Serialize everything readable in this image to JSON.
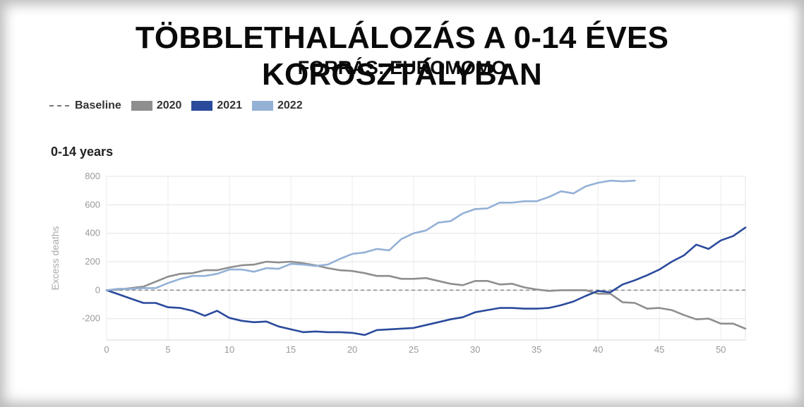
{
  "header": {
    "title": "TÖBBLETHALÁLOZÁS A 0-14 ÉVES KOROSZTÁLYBAN",
    "subtitle": "FORRÁS: EUROMOMO"
  },
  "chart_data": {
    "type": "line",
    "title": "0-14 years",
    "xlabel": "",
    "ylabel": "Excess deaths",
    "xlim": [
      0,
      52
    ],
    "ylim": [
      -350,
      800
    ],
    "x_ticks": [
      0,
      5,
      10,
      15,
      20,
      25,
      30,
      35,
      40,
      45,
      50
    ],
    "y_ticks": [
      -200,
      0,
      200,
      400,
      600,
      800
    ],
    "grid": true,
    "legend_position": "top-left",
    "baseline": {
      "name": "Baseline",
      "value": 0,
      "color": "#888888"
    },
    "series": [
      {
        "name": "2020",
        "color": "#8e8e8e",
        "x": [
          0,
          1,
          2,
          3,
          4,
          5,
          6,
          7,
          8,
          9,
          10,
          11,
          12,
          13,
          14,
          15,
          16,
          17,
          18,
          19,
          20,
          21,
          22,
          23,
          24,
          25,
          26,
          27,
          28,
          29,
          30,
          31,
          32,
          33,
          34,
          35,
          36,
          37,
          38,
          39,
          40,
          41,
          42,
          43,
          44,
          45,
          46,
          47,
          48,
          49,
          50,
          51,
          52
        ],
        "values": [
          0,
          5,
          15,
          25,
          60,
          95,
          115,
          120,
          140,
          140,
          160,
          175,
          180,
          200,
          195,
          200,
          190,
          175,
          155,
          140,
          135,
          120,
          100,
          100,
          80,
          80,
          85,
          65,
          45,
          35,
          65,
          65,
          40,
          45,
          20,
          5,
          -5,
          0,
          0,
          0,
          -25,
          -25,
          -85,
          -90,
          -130,
          -125,
          -140,
          -175,
          -205,
          -200,
          -235,
          -235,
          -270
        ]
      },
      {
        "name": "2021",
        "color": "#2a4a9c",
        "x": [
          0,
          1,
          2,
          3,
          4,
          5,
          6,
          7,
          8,
          9,
          10,
          11,
          12,
          13,
          14,
          15,
          16,
          17,
          18,
          19,
          20,
          21,
          22,
          23,
          24,
          25,
          26,
          27,
          28,
          29,
          30,
          31,
          32,
          33,
          34,
          35,
          36,
          37,
          38,
          39,
          40,
          41,
          42,
          43,
          44,
          45,
          46,
          47,
          48,
          49,
          50,
          51,
          52
        ],
        "values": [
          0,
          -30,
          -60,
          -90,
          -90,
          -120,
          -125,
          -145,
          -180,
          -145,
          -195,
          -215,
          -225,
          -220,
          -255,
          -275,
          -295,
          -290,
          -295,
          -295,
          -300,
          -315,
          -280,
          -275,
          -270,
          -265,
          -245,
          -225,
          -205,
          -190,
          -155,
          -140,
          -125,
          -125,
          -130,
          -130,
          -125,
          -105,
          -80,
          -40,
          -5,
          -15,
          40,
          70,
          105,
          145,
          200,
          245,
          320,
          290,
          350,
          380,
          440
        ]
      },
      {
        "name": "2022",
        "color": "#94b1d6",
        "x": [
          0,
          1,
          2,
          3,
          4,
          5,
          6,
          7,
          8,
          9,
          10,
          11,
          12,
          13,
          14,
          15,
          16,
          17,
          18,
          19,
          20,
          21,
          22,
          23,
          24,
          25,
          26,
          27,
          28,
          29,
          30,
          31,
          32,
          33,
          34,
          35,
          36,
          37,
          38,
          39,
          40,
          41,
          42,
          43
        ],
        "values": [
          0,
          10,
          10,
          15,
          15,
          50,
          80,
          100,
          100,
          115,
          145,
          145,
          130,
          155,
          150,
          185,
          180,
          170,
          180,
          220,
          255,
          265,
          290,
          280,
          360,
          400,
          420,
          475,
          485,
          540,
          570,
          575,
          615,
          615,
          625,
          625,
          655,
          695,
          680,
          730,
          755,
          770,
          765,
          770
        ]
      }
    ]
  }
}
